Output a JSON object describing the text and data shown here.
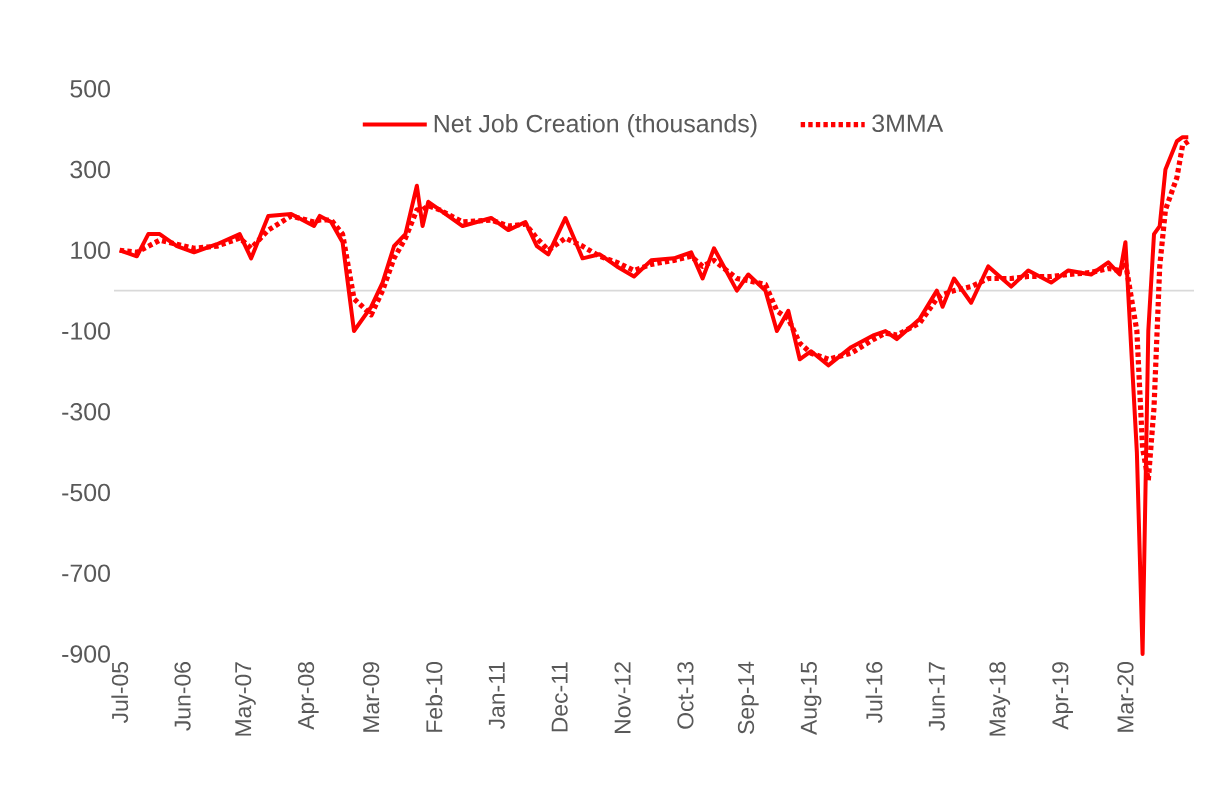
{
  "chart_data": {
    "type": "line",
    "x": [
      "2005-07",
      "2005-10",
      "2005-12",
      "2006-02",
      "2006-05",
      "2006-08",
      "2006-12",
      "2007-04",
      "2007-06",
      "2007-09",
      "2008-01",
      "2008-05",
      "2008-06",
      "2008-08",
      "2008-10",
      "2008-12",
      "2009-03",
      "2009-05",
      "2009-07",
      "2009-09",
      "2009-11",
      "2009-12",
      "2010-01",
      "2010-03",
      "2010-07",
      "2010-12",
      "2011-03",
      "2011-06",
      "2011-08",
      "2011-10",
      "2012-01",
      "2012-04",
      "2012-07",
      "2012-10",
      "2013-01",
      "2013-04",
      "2013-08",
      "2013-11",
      "2014-01",
      "2014-03",
      "2014-07",
      "2014-09",
      "2014-12",
      "2015-02",
      "2015-04",
      "2015-06",
      "2015-08",
      "2015-11",
      "2016-03",
      "2016-07",
      "2016-09",
      "2016-11",
      "2017-03",
      "2017-06",
      "2017-07",
      "2017-09",
      "2017-12",
      "2018-03",
      "2018-07",
      "2018-10",
      "2019-02",
      "2019-05",
      "2019-09",
      "2019-12",
      "2020-02",
      "2020-03",
      "2020-05",
      "2020-06",
      "2020-07",
      "2020-08",
      "2020-09",
      "2020-10",
      "2020-12",
      "2021-01",
      "2021-02"
    ],
    "series": [
      {
        "name": "Net Job Creation (thousands)",
        "color": "#ff0000",
        "line_style": "solid",
        "values": [
          100,
          85,
          140,
          140,
          110,
          95,
          115,
          140,
          80,
          185,
          190,
          160,
          185,
          170,
          120,
          -100,
          -40,
          20,
          110,
          140,
          260,
          160,
          220,
          200,
          160,
          180,
          150,
          170,
          110,
          90,
          180,
          80,
          90,
          60,
          35,
          75,
          80,
          95,
          30,
          105,
          0,
          40,
          0,
          -100,
          -50,
          -170,
          -150,
          -185,
          -140,
          -110,
          -100,
          -120,
          -70,
          0,
          -40,
          30,
          -30,
          60,
          10,
          50,
          20,
          50,
          40,
          70,
          40,
          120,
          -400,
          -900,
          -100,
          140,
          160,
          300,
          370,
          380,
          380
        ]
      },
      {
        "name": "3MMA",
        "color": "#ff0000",
        "line_style": "dotted",
        "values": [
          100,
          95,
          110,
          125,
          115,
          105,
          110,
          130,
          105,
          150,
          185,
          170,
          175,
          175,
          140,
          -20,
          -60,
          0,
          80,
          130,
          200,
          200,
          210,
          200,
          170,
          175,
          160,
          165,
          130,
          100,
          130,
          110,
          85,
          70,
          50,
          65,
          75,
          85,
          60,
          75,
          30,
          25,
          15,
          -50,
          -70,
          -130,
          -155,
          -170,
          -155,
          -120,
          -105,
          -110,
          -80,
          -20,
          -10,
          0,
          10,
          30,
          30,
          35,
          35,
          40,
          45,
          55,
          50,
          70,
          -100,
          -390,
          -470,
          -290,
          60,
          200,
          280,
          360,
          370
        ]
      }
    ],
    "xlim": [
      "2005-06",
      "2021-03"
    ],
    "xticks": [
      {
        "value": "2005-07",
        "label": "Jul-05"
      },
      {
        "value": "2006-06",
        "label": "Jun-06"
      },
      {
        "value": "2007-05",
        "label": "May-07"
      },
      {
        "value": "2008-04",
        "label": "Apr-08"
      },
      {
        "value": "2009-03",
        "label": "Mar-09"
      },
      {
        "value": "2010-02",
        "label": "Feb-10"
      },
      {
        "value": "2011-01",
        "label": "Jan-11"
      },
      {
        "value": "2011-12",
        "label": "Dec-11"
      },
      {
        "value": "2012-11",
        "label": "Nov-12"
      },
      {
        "value": "2013-10",
        "label": "Oct-13"
      },
      {
        "value": "2014-09",
        "label": "Sep-14"
      },
      {
        "value": "2015-08",
        "label": "Aug-15"
      },
      {
        "value": "2016-07",
        "label": "Jul-16"
      },
      {
        "value": "2017-06",
        "label": "Jun-17"
      },
      {
        "value": "2018-05",
        "label": "May-18"
      },
      {
        "value": "2019-04",
        "label": "Apr-19"
      },
      {
        "value": "2020-03",
        "label": "Mar-20"
      }
    ],
    "ylim": [
      -900,
      500
    ],
    "yticks": [
      -900,
      -700,
      -500,
      -300,
      -100,
      100,
      300,
      500
    ],
    "ref_lines": [
      {
        "axis": "y",
        "value": 0,
        "color": "#d9d9d9"
      }
    ],
    "legend": "top",
    "marker": "none"
  }
}
